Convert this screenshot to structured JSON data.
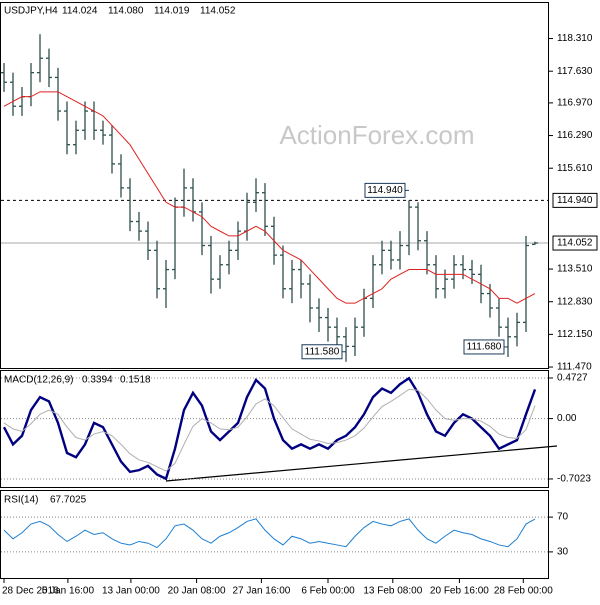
{
  "chart_data": [
    {
      "type": "ohlc",
      "title": "USDJPY,H4",
      "header_values": [
        "114.024",
        "114.080",
        "114.019",
        "114.052"
      ],
      "watermark": "ActionForex.com",
      "color": "#2f4f4f",
      "open": [
        117.6,
        117.4,
        116.9,
        117.1,
        117.6,
        117.9,
        117.5,
        116.8,
        116.1,
        116.4,
        116.8,
        116.4,
        116.3,
        115.7,
        115.2,
        114.5,
        114.3,
        113.9,
        113.1,
        113.5,
        114.8,
        115.2,
        114.7,
        114.0,
        113.3,
        113.6,
        113.9,
        114.3,
        114.9,
        115.1,
        114.4,
        113.8,
        113.1,
        113.5,
        113.2,
        112.7,
        112.5,
        112.3,
        112.1,
        111.9,
        112.3,
        112.9,
        113.6,
        113.9,
        113.7,
        114.0,
        114.8,
        114.1,
        113.6,
        113.1,
        113.3,
        113.6,
        113.5,
        113.4,
        113.0,
        112.7,
        112.3,
        112.1,
        112.4,
        114.024
      ],
      "high": [
        117.8,
        117.6,
        117.3,
        117.8,
        118.4,
        118.1,
        117.7,
        117.0,
        116.6,
        117.0,
        117.0,
        116.6,
        116.5,
        115.9,
        115.4,
        114.7,
        114.5,
        114.1,
        113.7,
        115.0,
        115.6,
        115.4,
        114.9,
        114.2,
        113.8,
        114.1,
        114.5,
        115.1,
        115.4,
        115.3,
        114.6,
        114.0,
        113.7,
        113.7,
        113.4,
        112.9,
        112.7,
        112.5,
        112.3,
        112.5,
        113.1,
        113.8,
        114.1,
        114.1,
        114.3,
        114.94,
        114.9,
        114.3,
        113.8,
        113.5,
        113.8,
        113.8,
        113.7,
        113.6,
        113.2,
        112.9,
        112.5,
        112.6,
        114.2,
        114.08
      ],
      "low": [
        117.2,
        116.7,
        116.7,
        116.9,
        117.4,
        117.3,
        116.6,
        115.9,
        115.9,
        116.2,
        116.2,
        116.1,
        115.5,
        115.0,
        114.3,
        114.1,
        113.7,
        112.9,
        112.7,
        113.3,
        114.6,
        114.5,
        113.8,
        113.0,
        113.1,
        113.4,
        113.7,
        114.1,
        114.7,
        114.2,
        113.6,
        112.9,
        112.8,
        112.9,
        112.4,
        112.2,
        112.0,
        111.8,
        111.58,
        111.7,
        112.1,
        112.7,
        113.4,
        113.5,
        113.5,
        113.8,
        113.9,
        113.4,
        112.9,
        112.9,
        113.1,
        113.3,
        113.2,
        112.8,
        112.5,
        112.1,
        111.68,
        111.9,
        112.2,
        114.019
      ],
      "close": [
        117.4,
        116.9,
        117.1,
        117.6,
        117.9,
        117.5,
        116.8,
        116.1,
        116.4,
        116.8,
        116.4,
        116.3,
        115.7,
        115.2,
        114.5,
        114.3,
        113.9,
        113.1,
        113.5,
        114.8,
        115.2,
        114.7,
        114.0,
        113.3,
        113.6,
        113.9,
        114.3,
        114.9,
        115.1,
        114.4,
        113.8,
        113.1,
        113.5,
        113.2,
        112.7,
        112.5,
        112.3,
        112.1,
        111.9,
        112.3,
        112.9,
        113.6,
        113.9,
        113.7,
        114.0,
        114.8,
        114.1,
        113.6,
        113.1,
        113.3,
        113.6,
        113.5,
        113.4,
        113.0,
        112.7,
        112.3,
        112.1,
        112.4,
        114.0,
        114.052
      ],
      "series": [
        {
          "color": "#e02020",
          "values": [
            116.9,
            117.0,
            117.1,
            117.1,
            117.2,
            117.2,
            117.2,
            117.1,
            117.0,
            116.9,
            116.8,
            116.7,
            116.5,
            116.3,
            116.1,
            115.8,
            115.5,
            115.2,
            114.9,
            114.8,
            114.8,
            114.7,
            114.6,
            114.4,
            114.3,
            114.2,
            114.2,
            114.3,
            114.4,
            114.3,
            114.1,
            113.9,
            113.8,
            113.7,
            113.5,
            113.3,
            113.1,
            112.9,
            112.8,
            112.8,
            112.9,
            113.0,
            113.1,
            113.3,
            113.4,
            113.5,
            113.5,
            113.5,
            113.4,
            113.4,
            113.4,
            113.4,
            113.3,
            113.2,
            113.1,
            112.9,
            112.9,
            112.8,
            112.9,
            113.0
          ]
        }
      ],
      "ylim": [
        111.45,
        119.05
      ],
      "yticks": [
        {
          "value": 118.31,
          "label": "118.310"
        },
        {
          "value": 117.63,
          "label": "117.630"
        },
        {
          "value": 116.97,
          "label": "116.970"
        },
        {
          "value": 116.29,
          "label": "116.290"
        },
        {
          "value": 115.61,
          "label": "115.610"
        },
        {
          "value": 113.51,
          "label": "113.510"
        },
        {
          "value": 112.83,
          "label": "112.830"
        },
        {
          "value": 112.15,
          "label": "112.150"
        },
        {
          "value": 111.47,
          "label": "111.470"
        }
      ],
      "levels": [
        {
          "value": 114.94,
          "label": "114.940",
          "style": "dashed"
        },
        {
          "value": 114.052,
          "label": "114.052",
          "style": "solid"
        }
      ],
      "annotations": [
        {
          "label": "114.940",
          "value": 114.94,
          "bar": 45
        },
        {
          "label": "111.580",
          "value": 111.58,
          "bar": 38
        },
        {
          "label": "111.680",
          "value": 111.68,
          "bar": 56
        }
      ]
    },
    {
      "type": "line",
      "title": "MACD(12,26,9)",
      "series": [
        {
          "color": "#000080",
          "values": [
            -0.1,
            -0.3,
            -0.2,
            0.1,
            0.25,
            0.2,
            -0.05,
            -0.4,
            -0.45,
            -0.3,
            -0.05,
            -0.1,
            -0.3,
            -0.5,
            -0.62,
            -0.6,
            -0.55,
            -0.65,
            -0.7,
            -0.35,
            0.1,
            0.3,
            0.15,
            -0.15,
            -0.25,
            -0.15,
            -0.05,
            0.25,
            0.45,
            0.35,
            0.0,
            -0.25,
            -0.35,
            -0.3,
            -0.35,
            -0.3,
            -0.35,
            -0.25,
            -0.2,
            -0.1,
            0.05,
            0.25,
            0.35,
            0.3,
            0.4,
            0.47,
            0.3,
            0.05,
            -0.15,
            -0.2,
            -0.05,
            0.05,
            0.0,
            -0.1,
            -0.2,
            -0.35,
            -0.3,
            -0.25,
            0.05,
            0.3394
          ]
        },
        {
          "color": "#b0b0b0",
          "values": [
            -0.05,
            -0.12,
            -0.15,
            -0.06,
            0.05,
            0.1,
            0.05,
            -0.1,
            -0.22,
            -0.25,
            -0.18,
            -0.15,
            -0.2,
            -0.3,
            -0.41,
            -0.48,
            -0.51,
            -0.56,
            -0.61,
            -0.52,
            -0.3,
            -0.09,
            0.0,
            -0.05,
            -0.12,
            -0.13,
            -0.1,
            0.02,
            0.17,
            0.23,
            0.15,
            0.01,
            -0.12,
            -0.18,
            -0.24,
            -0.26,
            -0.29,
            -0.28,
            -0.25,
            -0.2,
            -0.11,
            0.02,
            0.14,
            0.2,
            0.27,
            0.34,
            0.33,
            0.23,
            0.1,
            0.0,
            -0.02,
            0.0,
            0.0,
            -0.03,
            -0.09,
            -0.18,
            -0.22,
            -0.23,
            -0.13,
            0.1518
          ]
        }
      ],
      "ylim": [
        -0.796,
        0.554
      ],
      "yticks": [
        0.4727,
        {
          "value": 0,
          "label": "0.00"
        },
        -0.7023
      ]
    },
    {
      "type": "line",
      "title": "RSI(14)",
      "series": [
        {
          "color": "#1e7fd0",
          "values": [
            55,
            45,
            52,
            62,
            65,
            60,
            50,
            42,
            48,
            55,
            50,
            52,
            45,
            40,
            38,
            42,
            40,
            35,
            45,
            60,
            62,
            55,
            45,
            40,
            48,
            52,
            58,
            65,
            68,
            55,
            45,
            38,
            48,
            45,
            40,
            42,
            40,
            38,
            36,
            48,
            58,
            65,
            62,
            60,
            65,
            68,
            55,
            45,
            40,
            48,
            55,
            52,
            50,
            45,
            42,
            38,
            36,
            45,
            62,
            67.7025
          ]
        }
      ],
      "ylim": [
        0,
        100
      ],
      "yticks": [
        70,
        30
      ],
      "xticks": [
        {
          "value": 0,
          "label": "28 Dec 2016"
        },
        {
          "value": 7.1,
          "label": "5 Jan 16:00"
        },
        {
          "value": 14.1,
          "label": "13 Jan 00:00"
        },
        {
          "value": 21.4,
          "label": "20 Jan 08:00"
        },
        {
          "value": 28.6,
          "label": "27 Jan 16:00"
        },
        {
          "value": 36,
          "label": "6 Feb 00:00"
        },
        {
          "value": 43.2,
          "label": "13 Feb 08:00"
        },
        {
          "value": 50.6,
          "label": "20 Feb 16:00"
        },
        {
          "value": 57.7,
          "label": "28 Feb 00:00"
        }
      ]
    }
  ]
}
